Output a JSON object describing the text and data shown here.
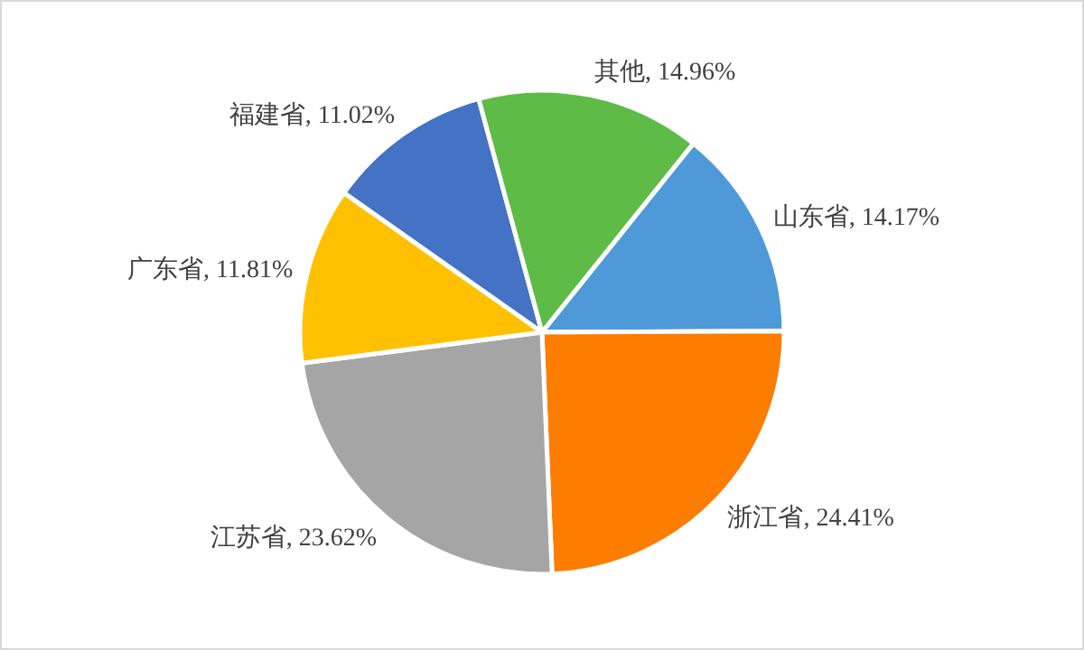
{
  "chart_data": {
    "type": "pie",
    "categories": [
      "山东省",
      "浙江省",
      "江苏省",
      "广东省",
      "福建省",
      "其他"
    ],
    "values": [
      14.17,
      24.41,
      23.62,
      11.81,
      11.02,
      14.96
    ],
    "colors": [
      "#4e9ad8",
      "#fd7d00",
      "#a5a5a5",
      "#ffc000",
      "#4472c4",
      "#5dbb46"
    ],
    "value_labels": [
      ", 14.17%",
      ", 24.41%",
      ", 23.62%",
      ", 11.81%",
      ", 11.02%",
      ", 14.96%"
    ]
  }
}
